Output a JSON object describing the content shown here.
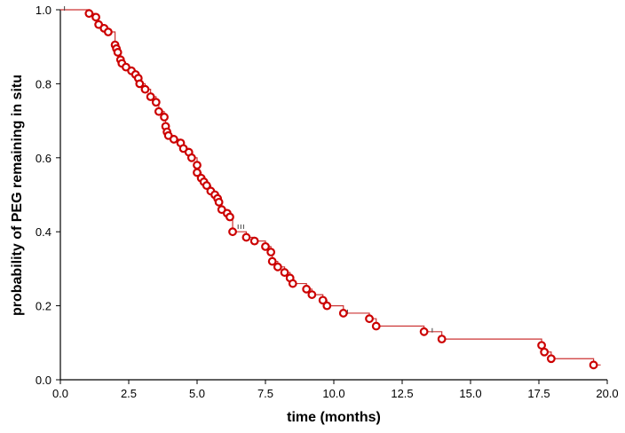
{
  "chart_data": {
    "type": "line",
    "title": "",
    "xlabel": "time (months)",
    "ylabel": "probability of PEG remaining in situ",
    "xlim": [
      0,
      20
    ],
    "ylim": [
      0,
      1
    ],
    "x_ticks": [
      "0.0",
      "2.5",
      "5.0",
      "7.5",
      "10.0",
      "12.5",
      "15.0",
      "17.5",
      "20.0"
    ],
    "y_ticks": [
      "0.0",
      "0.2",
      "0.4",
      "0.6",
      "0.8",
      "1.0"
    ],
    "grid": false,
    "legend": "none",
    "series": [
      {
        "steps": [
          [
            0,
            1.0
          ],
          [
            1.05,
            0.99
          ],
          [
            1.3,
            0.98
          ],
          [
            1.4,
            0.96
          ],
          [
            1.6,
            0.95
          ],
          [
            1.75,
            0.94
          ],
          [
            2.0,
            0.905
          ],
          [
            2.05,
            0.895
          ],
          [
            2.1,
            0.885
          ],
          [
            2.2,
            0.865
          ],
          [
            2.25,
            0.855
          ],
          [
            2.4,
            0.845
          ],
          [
            2.6,
            0.835
          ],
          [
            2.75,
            0.825
          ],
          [
            2.85,
            0.815
          ],
          [
            2.9,
            0.8
          ],
          [
            3.1,
            0.785
          ],
          [
            3.3,
            0.765
          ],
          [
            3.5,
            0.75
          ],
          [
            3.6,
            0.725
          ],
          [
            3.8,
            0.71
          ],
          [
            3.85,
            0.685
          ],
          [
            3.9,
            0.67
          ],
          [
            3.95,
            0.66
          ],
          [
            4.15,
            0.65
          ],
          [
            4.4,
            0.64
          ],
          [
            4.5,
            0.625
          ],
          [
            4.7,
            0.615
          ],
          [
            4.8,
            0.6
          ],
          [
            5.0,
            0.58
          ],
          [
            5.0,
            0.56
          ],
          [
            5.15,
            0.545
          ],
          [
            5.25,
            0.535
          ],
          [
            5.35,
            0.525
          ],
          [
            5.5,
            0.51
          ],
          [
            5.65,
            0.5
          ],
          [
            5.75,
            0.49
          ],
          [
            5.8,
            0.48
          ],
          [
            5.9,
            0.46
          ],
          [
            6.1,
            0.45
          ],
          [
            6.2,
            0.44
          ],
          [
            6.3,
            0.4
          ],
          [
            6.8,
            0.385
          ],
          [
            7.1,
            0.375
          ],
          [
            7.5,
            0.36
          ],
          [
            7.7,
            0.345
          ],
          [
            7.75,
            0.32
          ],
          [
            7.95,
            0.305
          ],
          [
            8.2,
            0.29
          ],
          [
            8.4,
            0.275
          ],
          [
            8.5,
            0.26
          ],
          [
            9.0,
            0.245
          ],
          [
            9.2,
            0.23
          ],
          [
            9.6,
            0.215
          ],
          [
            9.75,
            0.2
          ],
          [
            10.35,
            0.18
          ],
          [
            11.3,
            0.165
          ],
          [
            11.55,
            0.145
          ],
          [
            13.3,
            0.13
          ],
          [
            13.95,
            0.11
          ],
          [
            17.6,
            0.093
          ],
          [
            17.7,
            0.075
          ],
          [
            17.95,
            0.057
          ],
          [
            19.5,
            0.04
          ]
        ],
        "censor_ticks": [
          [
            0.15,
            1.0
          ],
          [
            6.5,
            0.41
          ],
          [
            6.6,
            0.41
          ],
          [
            6.7,
            0.41
          ],
          [
            7.5,
            0.36
          ],
          [
            10.5,
            0.18
          ],
          [
            13.6,
            0.13
          ]
        ],
        "color": "#cc0000",
        "line_color": "#444444"
      }
    ]
  }
}
